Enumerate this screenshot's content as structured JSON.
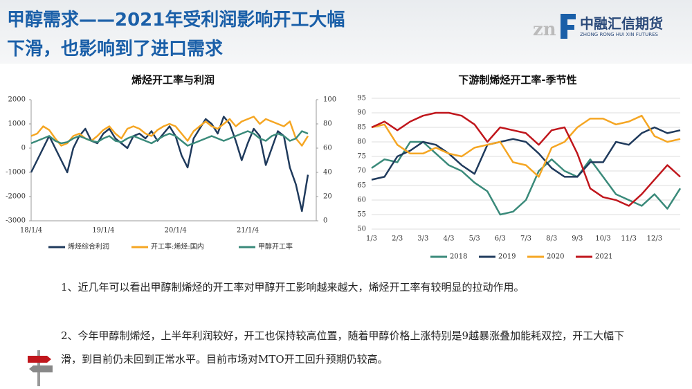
{
  "header": {
    "title_line1": "甲醇需求——2021年受利润影响开工大幅",
    "title_line2": "下滑，也影响到了进口需求"
  },
  "logo": {
    "name": "中融汇信期货",
    "english": "ZHONG RONG HUI XIN FUTURES"
  },
  "chart_data": [
    {
      "type": "line",
      "title": "烯烃开工率与利润",
      "categories": [
        "18/1/4",
        null,
        null,
        null,
        null,
        null,
        null,
        null,
        null,
        null,
        null,
        null,
        "19/1/4",
        null,
        null,
        null,
        null,
        null,
        null,
        null,
        null,
        null,
        null,
        null,
        "20/1/4",
        null,
        null,
        null,
        null,
        null,
        null,
        null,
        null,
        null,
        null,
        null,
        "21/1/4",
        null,
        null,
        null,
        null,
        null,
        null,
        null,
        null,
        null,
        null
      ],
      "ylim": [
        -3000,
        2000
      ],
      "yticks": [
        -3000,
        -2000,
        -1000,
        0,
        1000,
        2000
      ],
      "y2lim": [
        0,
        100
      ],
      "y2ticks": [
        0,
        20,
        40,
        60,
        80,
        100
      ],
      "grid": false,
      "legend": "bottom",
      "series": [
        {
          "name": "烯烃综合利润",
          "color": "#1f3a5c",
          "values": [
            -1000,
            -500,
            0,
            500,
            0,
            -500,
            -1000,
            0,
            500,
            800,
            300,
            200,
            600,
            800,
            400,
            200,
            0,
            500,
            600,
            400,
            700,
            300,
            600,
            900,
            500,
            -300,
            -800,
            400,
            800,
            1200,
            1000,
            600,
            1300,
            1000,
            300,
            -500,
            200,
            800,
            500,
            -700,
            0,
            700,
            500,
            -800,
            -1500,
            -2600,
            -1100
          ]
        },
        {
          "name": "开工率:烯烃:国内",
          "color": "#f5a623",
          "axis": "y2",
          "values": [
            70,
            72,
            78,
            75,
            68,
            62,
            64,
            70,
            72,
            68,
            66,
            70,
            75,
            78,
            72,
            68,
            76,
            78,
            76,
            72,
            70,
            75,
            78,
            80,
            78,
            72,
            66,
            74,
            78,
            82,
            78,
            76,
            80,
            84,
            78,
            82,
            84,
            86,
            80,
            84,
            82,
            80,
            78,
            82,
            68,
            62,
            70
          ]
        },
        {
          "name": "甲醇开工率",
          "color": "#3a8a7a",
          "axis": "y2",
          "values": [
            64,
            66,
            68,
            70,
            66,
            64,
            65,
            68,
            70,
            68,
            66,
            65,
            68,
            70,
            66,
            65,
            68,
            70,
            68,
            66,
            64,
            67,
            70,
            72,
            70,
            66,
            62,
            64,
            66,
            68,
            70,
            68,
            66,
            68,
            70,
            72,
            74,
            72,
            68,
            66,
            70,
            72,
            70,
            66,
            68,
            74,
            72
          ]
        }
      ]
    },
    {
      "type": "line",
      "title": "下游制烯烃开工率-季节性",
      "categories": [
        "1/3",
        null,
        "2/3",
        null,
        "3/3",
        null,
        "4/3",
        null,
        "5/3",
        null,
        "6/3",
        null,
        "7/3",
        null,
        "8/3",
        null,
        "9/3",
        null,
        "10/3",
        null,
        "11/3",
        null,
        "12/3",
        null,
        null
      ],
      "ylim": [
        50,
        95
      ],
      "yticks": [
        50,
        55,
        60,
        65,
        70,
        75,
        80,
        85,
        90,
        95
      ],
      "grid": true,
      "legend": "bottom",
      "series": [
        {
          "name": "2018",
          "color": "#3a8a7a",
          "values": [
            71,
            74,
            73,
            80,
            80,
            76,
            72,
            70,
            66,
            63,
            55,
            56,
            60,
            70,
            74,
            70,
            68,
            74,
            68,
            62,
            60,
            58,
            62,
            57,
            64
          ]
        },
        {
          "name": "2019",
          "color": "#1f3a5c",
          "values": [
            67,
            68,
            75,
            77,
            80,
            79,
            76,
            72,
            69,
            79,
            80,
            81,
            80,
            76,
            71,
            68,
            68,
            73,
            73,
            80,
            79,
            83,
            85,
            83,
            84
          ]
        },
        {
          "name": "2020",
          "color": "#f5a623",
          "values": [
            85,
            86,
            79,
            76,
            76,
            78,
            76,
            75,
            78,
            79,
            80,
            73,
            72,
            68,
            78,
            80,
            85,
            88,
            88,
            86,
            87,
            89,
            82,
            80,
            81
          ]
        },
        {
          "name": "2021",
          "color": "#c0161c",
          "values": [
            85,
            87,
            84,
            87,
            89,
            90,
            90,
            89,
            86,
            80,
            85,
            84,
            83,
            79,
            84,
            85,
            76,
            64,
            61,
            60,
            58,
            62,
            67,
            72,
            68
          ]
        }
      ]
    }
  ],
  "paragraphs": [
    "1、近几年可以看出甲醇制烯烃的开工率对甲醇开工影响越来越大，烯烃开工率有较明显的拉动作用。",
    "2、今年甲醇制烯烃，上半年利润较好，开工也保持较高位置，随着甲醇价格上涨特别是9越暴涨叠加能耗双控，开工大幅下滑，到目前仍未回到正常水平。目前市场对MTO开工回升预期仍较高。"
  ]
}
